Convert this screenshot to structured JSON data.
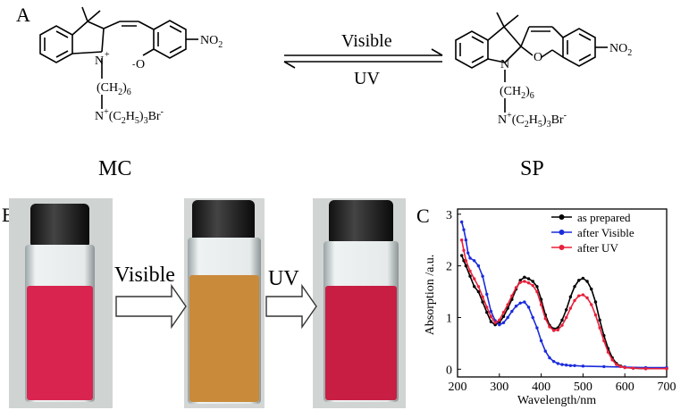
{
  "panels": {
    "a": "A",
    "b": "B",
    "c": "C"
  },
  "reaction": {
    "forward_label": "Visible",
    "reverse_label": "UV",
    "left_name": "MC",
    "right_name": "SP",
    "atoms": {
      "n_plus": "N",
      "o_minus": "O",
      "o": "O",
      "n": "N",
      "no2": "NO",
      "no2_sub": "2",
      "chain": "(CH",
      "chain_sub": "2",
      "chain_close": ")",
      "chain_sub2": "6",
      "amine": "N",
      "amine_rest": "(C",
      "amine_sub1": "2",
      "amine_h": "H",
      "amine_sub2": "5",
      "amine_close": ")",
      "amine_sub3": "3",
      "amine_br": "Br",
      "plus": "+",
      "minus": "-"
    }
  },
  "photos": {
    "label_visible": "Visible",
    "label_uv": "UV",
    "vial_colors": [
      "#d9244f",
      "#c98a3a",
      "#c81e43"
    ]
  },
  "chart_data": {
    "type": "line",
    "xlabel": "Wavelength/nm",
    "ylabel": "Absorption /a.u.",
    "xlim": [
      200,
      700
    ],
    "ylim": [
      -0.15,
      3.1
    ],
    "xticks": [
      200,
      300,
      400,
      500,
      600,
      700
    ],
    "yticks": [
      0,
      1,
      2,
      3
    ],
    "legend_position": "top-right",
    "series": [
      {
        "name": "as prepared",
        "color": "#000000",
        "x": [
          210,
          215,
          220,
          230,
          240,
          250,
          260,
          270,
          280,
          290,
          300,
          310,
          320,
          330,
          340,
          350,
          360,
          370,
          380,
          390,
          400,
          410,
          420,
          430,
          440,
          450,
          460,
          470,
          480,
          490,
          500,
          510,
          520,
          530,
          540,
          550,
          560,
          570,
          580,
          590,
          600,
          620,
          650,
          700
        ],
        "y": [
          2.2,
          2.1,
          2.0,
          1.8,
          1.6,
          1.5,
          1.3,
          1.1,
          0.92,
          0.86,
          0.9,
          1.02,
          1.18,
          1.35,
          1.55,
          1.72,
          1.78,
          1.75,
          1.7,
          1.6,
          1.35,
          1.05,
          0.85,
          0.78,
          0.8,
          0.95,
          1.15,
          1.4,
          1.6,
          1.72,
          1.76,
          1.7,
          1.55,
          1.3,
          0.95,
          0.65,
          0.4,
          0.22,
          0.11,
          0.06,
          0.04,
          0.02,
          0.01,
          0.01
        ]
      },
      {
        "name": "after Visible",
        "color": "#1a2bdc",
        "x": [
          210,
          215,
          220,
          225,
          230,
          240,
          250,
          260,
          270,
          280,
          290,
          300,
          310,
          320,
          330,
          340,
          350,
          360,
          370,
          380,
          390,
          400,
          410,
          420,
          430,
          440,
          450,
          460,
          470,
          480,
          500,
          550,
          600,
          650,
          700
        ],
        "y": [
          2.85,
          2.7,
          2.5,
          2.25,
          2.15,
          2.1,
          2.0,
          1.8,
          1.45,
          1.12,
          0.94,
          0.86,
          0.9,
          1.0,
          1.12,
          1.22,
          1.28,
          1.3,
          1.2,
          1.0,
          0.8,
          0.55,
          0.35,
          0.22,
          0.15,
          0.11,
          0.09,
          0.08,
          0.07,
          0.07,
          0.06,
          0.05,
          0.04,
          0.03,
          0.03
        ]
      },
      {
        "name": "after UV",
        "color": "#e8203a",
        "x": [
          210,
          215,
          220,
          230,
          240,
          250,
          260,
          270,
          280,
          290,
          300,
          310,
          320,
          330,
          340,
          350,
          360,
          370,
          380,
          390,
          400,
          410,
          420,
          430,
          440,
          450,
          460,
          470,
          480,
          490,
          500,
          510,
          520,
          530,
          540,
          550,
          560,
          570,
          580,
          590,
          600,
          620,
          650,
          700
        ],
        "y": [
          2.5,
          2.3,
          2.1,
          1.9,
          1.75,
          1.6,
          1.4,
          1.2,
          1.02,
          0.9,
          0.95,
          1.1,
          1.25,
          1.42,
          1.58,
          1.68,
          1.7,
          1.67,
          1.62,
          1.5,
          1.25,
          0.98,
          0.82,
          0.75,
          0.76,
          0.85,
          1.0,
          1.18,
          1.33,
          1.42,
          1.44,
          1.38,
          1.25,
          1.05,
          0.8,
          0.55,
          0.33,
          0.18,
          0.09,
          0.05,
          0.03,
          0.02,
          0.01,
          0.01
        ]
      }
    ]
  }
}
